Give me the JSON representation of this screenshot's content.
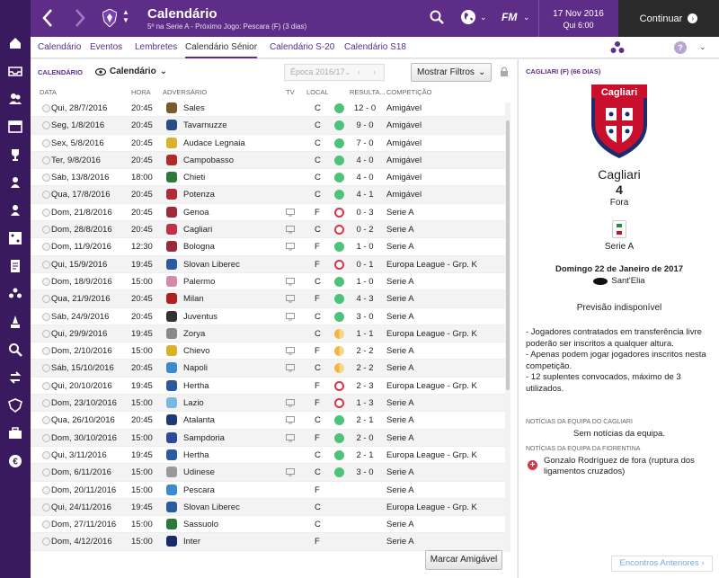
{
  "header": {
    "title": "Calendário",
    "subtitle": "5º na Serie A - Próximo Jogo: Pescara (F) (3 dias)",
    "fm_label": "FM",
    "date": "17 Nov 2016",
    "day_time": "Qui 6:00",
    "continue_label": "Continuar"
  },
  "tabs": [
    {
      "label": "Calendário"
    },
    {
      "label": "Eventos"
    },
    {
      "label": "Lembretes"
    },
    {
      "label": "Calendário Sénior",
      "active": true
    },
    {
      "label": "Calendário S-20"
    },
    {
      "label": "Calendário S18"
    }
  ],
  "help_label": "?",
  "filter": {
    "section_label": "CALENDÁRIO",
    "view_label": "Calendário",
    "season_label": "Época 2016/17",
    "filters_label": "Mostrar Filtros"
  },
  "columns": {
    "date": "DATA",
    "time": "HORA",
    "opponent": "ADVERSÁRIO",
    "tv": "TV",
    "venue": "LOCAL",
    "result": "RESULTA...",
    "competition": "COMPETIÇÃO"
  },
  "fixtures": [
    {
      "date": "Qui, 28/7/2016",
      "time": "20:45",
      "opponent": "Sales",
      "tv": false,
      "venue": "C",
      "result": "win",
      "score": "12 - 0",
      "competition": "Amigável",
      "crest": "#7a5a2a"
    },
    {
      "date": "Seg, 1/8/2016",
      "time": "20:45",
      "opponent": "Tavarnuzze",
      "tv": false,
      "venue": "C",
      "result": "win",
      "score": "9 - 0",
      "competition": "Amigável",
      "crest": "#2b4a8a"
    },
    {
      "date": "Sex, 5/8/2016",
      "time": "20:45",
      "opponent": "Audace Legnaia",
      "tv": false,
      "venue": "C",
      "result": "win",
      "score": "7 - 0",
      "competition": "Amigável",
      "crest": "#d9b12a"
    },
    {
      "date": "Ter, 9/8/2016",
      "time": "20:45",
      "opponent": "Campobasso",
      "tv": false,
      "venue": "C",
      "result": "win",
      "score": "4 - 0",
      "competition": "Amigável",
      "crest": "#b02a2a"
    },
    {
      "date": "Sáb, 13/8/2016",
      "time": "18:00",
      "opponent": "Chieti",
      "tv": false,
      "venue": "C",
      "result": "win",
      "score": "4 - 0",
      "competition": "Amigável",
      "crest": "#2a7a3a"
    },
    {
      "date": "Qua, 17/8/2016",
      "time": "20:45",
      "opponent": "Potenza",
      "tv": false,
      "venue": "C",
      "result": "win",
      "score": "4 - 1",
      "competition": "Amigável",
      "crest": "#b02a3a"
    },
    {
      "date": "Dom, 21/8/2016",
      "time": "20:45",
      "opponent": "Genoa",
      "tv": true,
      "venue": "F",
      "result": "loss",
      "score": "0 - 3",
      "competition": "Serie A",
      "crest": "#a02a3a"
    },
    {
      "date": "Dom, 28/8/2016",
      "time": "20:45",
      "opponent": "Cagliari",
      "tv": true,
      "venue": "C",
      "result": "loss",
      "score": "0 - 2",
      "competition": "Serie A",
      "crest": "#c0304a"
    },
    {
      "date": "Dom, 11/9/2016",
      "time": "12:30",
      "opponent": "Bologna",
      "tv": true,
      "venue": "F",
      "result": "win",
      "score": "1 - 0",
      "competition": "Serie A",
      "crest": "#9a2a3a"
    },
    {
      "date": "Qui, 15/9/2016",
      "time": "19:45",
      "opponent": "Slovan Liberec",
      "tv": false,
      "venue": "F",
      "result": "loss",
      "score": "0 - 1",
      "competition": "Europa League - Grp. K",
      "crest": "#2a5aa0"
    },
    {
      "date": "Dom, 18/9/2016",
      "time": "15:00",
      "opponent": "Palermo",
      "tv": true,
      "venue": "C",
      "result": "win",
      "score": "1 - 0",
      "competition": "Serie A",
      "crest": "#d48aa8"
    },
    {
      "date": "Qua, 21/9/2016",
      "time": "20:45",
      "opponent": "Milan",
      "tv": true,
      "venue": "F",
      "result": "win",
      "score": "4 - 3",
      "competition": "Serie A",
      "crest": "#b02020"
    },
    {
      "date": "Sáb, 24/9/2016",
      "time": "20:45",
      "opponent": "Juventus",
      "tv": true,
      "venue": "C",
      "result": "win",
      "score": "3 - 0",
      "competition": "Serie A",
      "crest": "#333333"
    },
    {
      "date": "Qui, 29/9/2016",
      "time": "19:45",
      "opponent": "Zorya",
      "tv": false,
      "venue": "C",
      "result": "draw",
      "score": "1 - 1",
      "competition": "Europa League - Grp. K",
      "crest": "#888888"
    },
    {
      "date": "Dom, 2/10/2016",
      "time": "15:00",
      "opponent": "Chievo",
      "tv": true,
      "venue": "F",
      "result": "draw",
      "score": "2 - 2",
      "competition": "Serie A",
      "crest": "#d9b12a"
    },
    {
      "date": "Sáb, 15/10/2016",
      "time": "20:45",
      "opponent": "Napoli",
      "tv": true,
      "venue": "C",
      "result": "draw",
      "score": "2 - 2",
      "competition": "Serie A",
      "crest": "#3a8ad0"
    },
    {
      "date": "Qui, 20/10/2016",
      "time": "19:45",
      "opponent": "Hertha",
      "tv": false,
      "venue": "F",
      "result": "loss",
      "score": "2 - 3",
      "competition": "Europa League - Grp. K",
      "crest": "#2a5aa0"
    },
    {
      "date": "Dom, 23/10/2016",
      "time": "15:00",
      "opponent": "Lazio",
      "tv": true,
      "venue": "F",
      "result": "loss",
      "score": "1 - 3",
      "competition": "Serie A",
      "crest": "#7ab8e0"
    },
    {
      "date": "Qua, 26/10/2016",
      "time": "20:45",
      "opponent": "Atalanta",
      "tv": true,
      "venue": "C",
      "result": "win",
      "score": "2 - 1",
      "competition": "Serie A",
      "crest": "#1a3a7a"
    },
    {
      "date": "Dom, 30/10/2016",
      "time": "15:00",
      "opponent": "Sampdoria",
      "tv": true,
      "venue": "F",
      "result": "win",
      "score": "2 - 0",
      "competition": "Serie A",
      "crest": "#2a4aa0"
    },
    {
      "date": "Qui, 3/11/2016",
      "time": "19:45",
      "opponent": "Hertha",
      "tv": false,
      "venue": "C",
      "result": "win",
      "score": "2 - 1",
      "competition": "Europa League - Grp. K",
      "crest": "#2a5aa0"
    },
    {
      "date": "Dom, 6/11/2016",
      "time": "15:00",
      "opponent": "Udinese",
      "tv": true,
      "venue": "C",
      "result": "win",
      "score": "3 - 0",
      "competition": "Serie A",
      "crest": "#999999"
    },
    {
      "date": "Dom, 20/11/2016",
      "time": "15:00",
      "opponent": "Pescara",
      "tv": false,
      "venue": "F",
      "result": "",
      "score": "",
      "competition": "Serie A",
      "crest": "#3a8ad0"
    },
    {
      "date": "Qui, 24/11/2016",
      "time": "19:45",
      "opponent": "Slovan Liberec",
      "tv": false,
      "venue": "C",
      "result": "",
      "score": "",
      "competition": "Europa League - Grp. K",
      "crest": "#2a5aa0"
    },
    {
      "date": "Dom, 27/11/2016",
      "time": "15:00",
      "opponent": "Sassuolo",
      "tv": false,
      "venue": "C",
      "result": "",
      "score": "",
      "competition": "Serie A",
      "crest": "#2a7a3a"
    },
    {
      "date": "Dom, 4/12/2016",
      "time": "15:00",
      "opponent": "Inter",
      "tv": false,
      "venue": "F",
      "result": "",
      "score": "",
      "competition": "Serie A",
      "crest": "#1a2a6a"
    }
  ],
  "actions": {
    "friendly_label": "Marcar Amigável",
    "previous_label": "Encontros Anteriores"
  },
  "side": {
    "title": "CAGLIARI (F) (66 DIAS)",
    "crest_text": "Cagliari",
    "team": "Cagliari",
    "position": "4",
    "venue": "Fora",
    "competition": "Serie A",
    "date": "Domingo 22 de Janeiro de 2017",
    "stadium": "Sant'Elia",
    "forecast": "Previsão indisponível",
    "rules": [
      "- Jogadores contratados em transferência livre poderão ser inscritos a qualquer altura.",
      "- Apenas podem jogar jogadores inscritos nesta competição.",
      "- 12 suplentes convocados, máximo de 3 utilizados."
    ],
    "news_opp_header": "NOTÍCIAS DA EQUIPA DO CAGLIARI",
    "news_opp": "Sem notícias da equipa.",
    "news_own_header": "NOTÍCIAS DA EQUIPA DA FIORENTINA",
    "news_own": "Gonzalo Rodríguez de fora (ruptura dos ligamentos cruzados)"
  },
  "nav_icons": [
    "home-icon",
    "inbox-icon",
    "squad-icon",
    "calendar-icon",
    "trophy-icon",
    "u20-icon",
    "u18-icon",
    "tactics-icon",
    "documents-icon",
    "staff-icon",
    "training-icon",
    "scouting-icon",
    "transfers-icon",
    "club-info-icon",
    "finances-icon",
    "money-icon"
  ],
  "colors": {
    "accent": "#5d2d88",
    "nav": "#3a1a5e",
    "win": "#4cc27a",
    "loss": "#d9344a",
    "draw": "#f2b640"
  }
}
